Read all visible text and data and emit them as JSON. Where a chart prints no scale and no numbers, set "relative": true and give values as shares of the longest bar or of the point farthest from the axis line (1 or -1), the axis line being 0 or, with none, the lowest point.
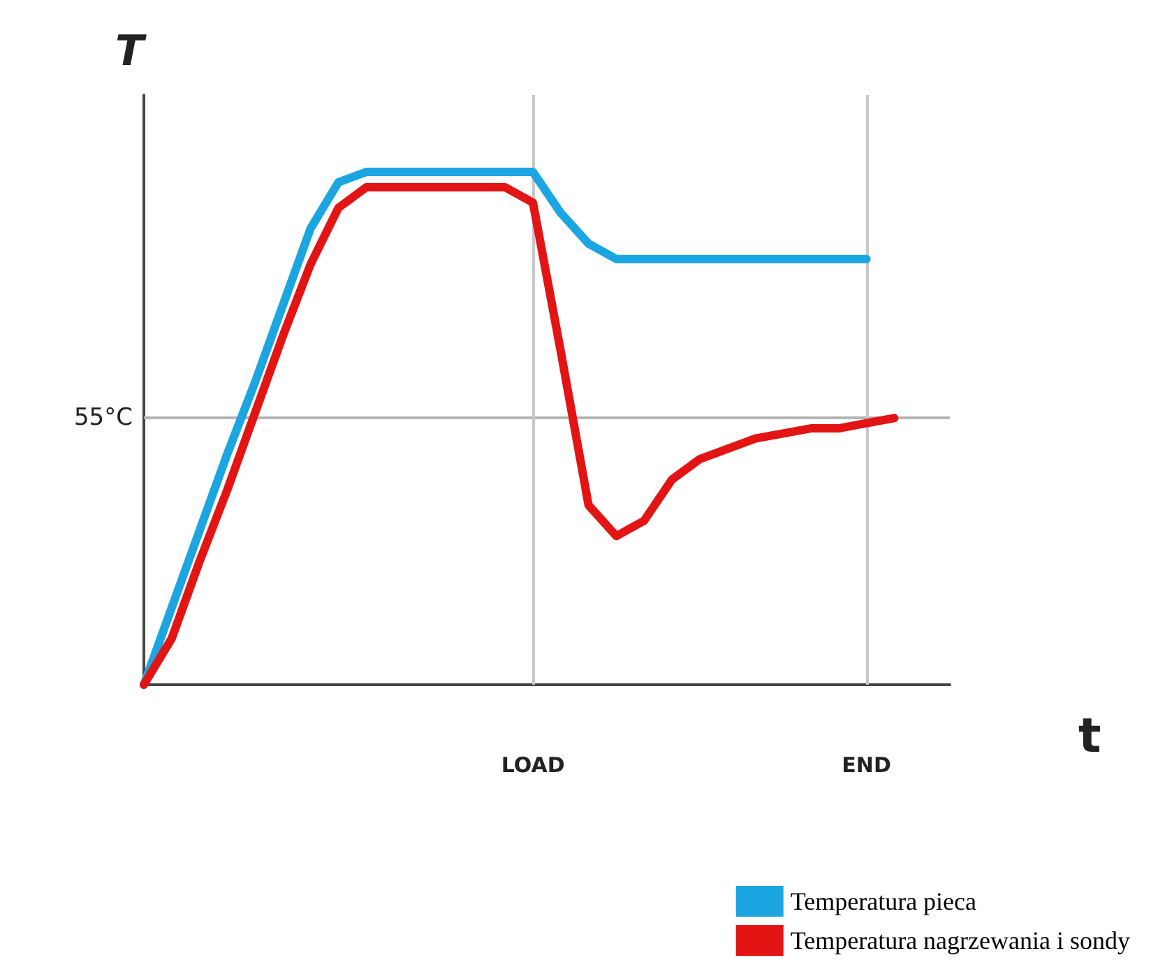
{
  "chart_data": {
    "type": "line",
    "relative": true,
    "xlabel": "t",
    "ylabel": "T",
    "tick_labels": "x",
    "grid": false,
    "legend": "bottom right",
    "marker": "none",
    "line_style": "solid",
    "categories": [
      null,
      null,
      null,
      null,
      null,
      null,
      null,
      null,
      null,
      null,
      null,
      null,
      null,
      null,
      "LOAD",
      null,
      null,
      null,
      null,
      null,
      null,
      null,
      null,
      null,
      null,
      null,
      "END",
      null,
      null,
      null
    ],
    "series": [
      {
        "name": "Temperatura pieca",
        "color": "#1ba6e2",
        "values": [
          0,
          0.15,
          0.3,
          0.45,
          0.59,
          0.74,
          0.89,
          0.98,
          1,
          1,
          1,
          1,
          1,
          1,
          1,
          0.92,
          0.86,
          0.83,
          0.83,
          0.83,
          0.83,
          0.83,
          0.83,
          0.83,
          0.83,
          0.83,
          0.83,
          null,
          null,
          null
        ]
      },
      {
        "name": "Temperatura nagrzewania i sondy",
        "color": "#e31414",
        "values": [
          0,
          0.09,
          0.24,
          0.38,
          0.53,
          0.68,
          0.82,
          0.93,
          0.97,
          0.97,
          0.97,
          0.97,
          0.97,
          0.97,
          0.94,
          0.65,
          0.35,
          0.29,
          0.32,
          0.4,
          0.44,
          0.46,
          0.48,
          0.49,
          0.5,
          0.5,
          0.51,
          0.52,
          null,
          null
        ]
      }
    ],
    "ref_lines": [
      {
        "axis": "y",
        "value": 0.52,
        "label": "55°C",
        "color": "#b4b4b4"
      },
      {
        "axis": "x",
        "value": "LOAD",
        "color": "#c8c8c8"
      },
      {
        "axis": "x",
        "value": "END",
        "color": "#c8c8c8"
      }
    ]
  }
}
